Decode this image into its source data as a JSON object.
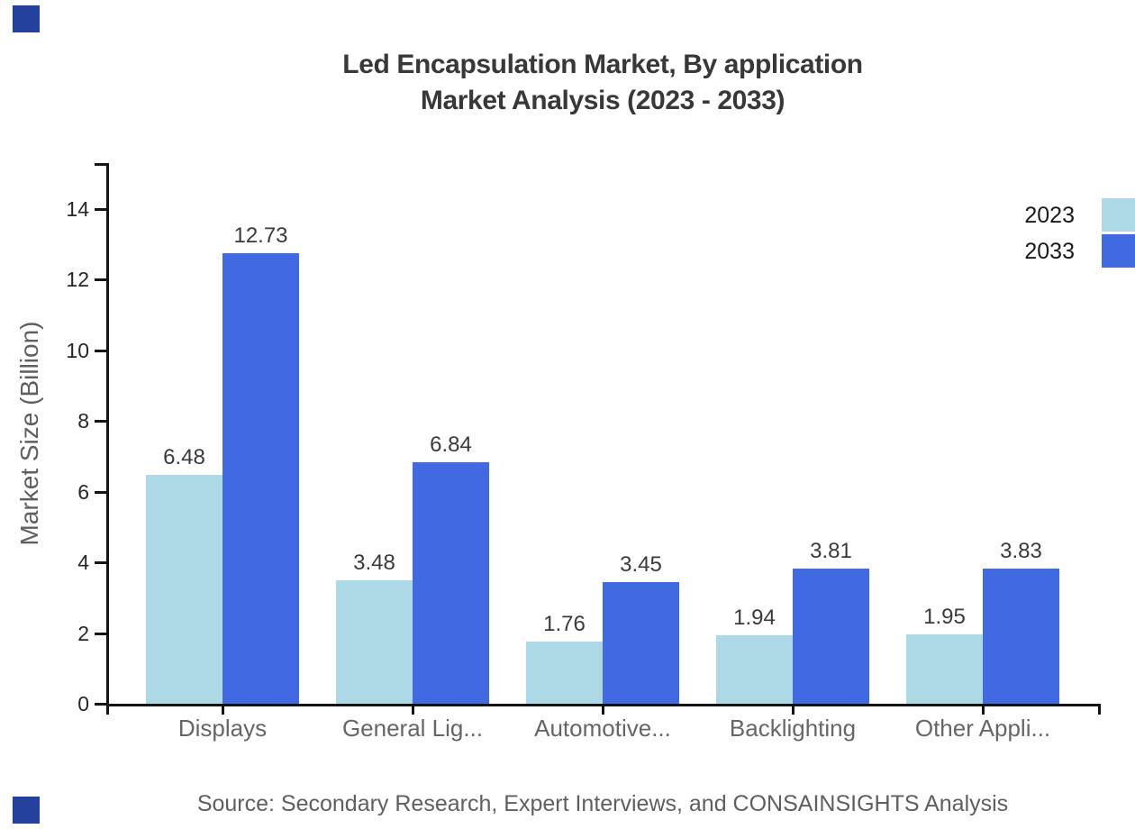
{
  "title_line1": "Led Encapsulation Market, By application",
  "title_line2": "Market Analysis (2023 - 2033)",
  "source": "Source: Secondary Research, Expert Interviews, and CONSAINSIGHTS Analysis",
  "legend": {
    "position": "top-right",
    "items": [
      {
        "label": "2023",
        "color": "#ADD8E6"
      },
      {
        "label": "2033",
        "color": "#4169E1"
      }
    ]
  },
  "colors": {
    "series_2023": "#ADD8E6",
    "series_2033": "#4169E1",
    "axis": "#141414",
    "corner_decoration": "#24419E",
    "title_text": "#383838",
    "muted_text": "#5f5f5f"
  },
  "chart_data": {
    "type": "bar",
    "title": "Led Encapsulation Market, By application Market Analysis (2023 - 2033)",
    "categories": [
      "Displays",
      "General Lig...",
      "Automotive...",
      "Backlighting",
      "Other Appli..."
    ],
    "series": [
      {
        "name": "2023",
        "color": "#ADD8E6",
        "values": [
          6.48,
          3.48,
          1.76,
          1.94,
          1.95
        ]
      },
      {
        "name": "2033",
        "color": "#4169E1",
        "values": [
          12.73,
          6.84,
          3.45,
          3.81,
          3.83
        ]
      }
    ],
    "xlabel": "",
    "ylabel": "Market Size (Billion)",
    "ylim": [
      0,
      15.3
    ],
    "yticks": [
      0,
      2,
      4,
      6,
      8,
      10,
      12,
      14
    ],
    "grid": false,
    "legend_position": "top-right",
    "value_labels_shown": true
  }
}
